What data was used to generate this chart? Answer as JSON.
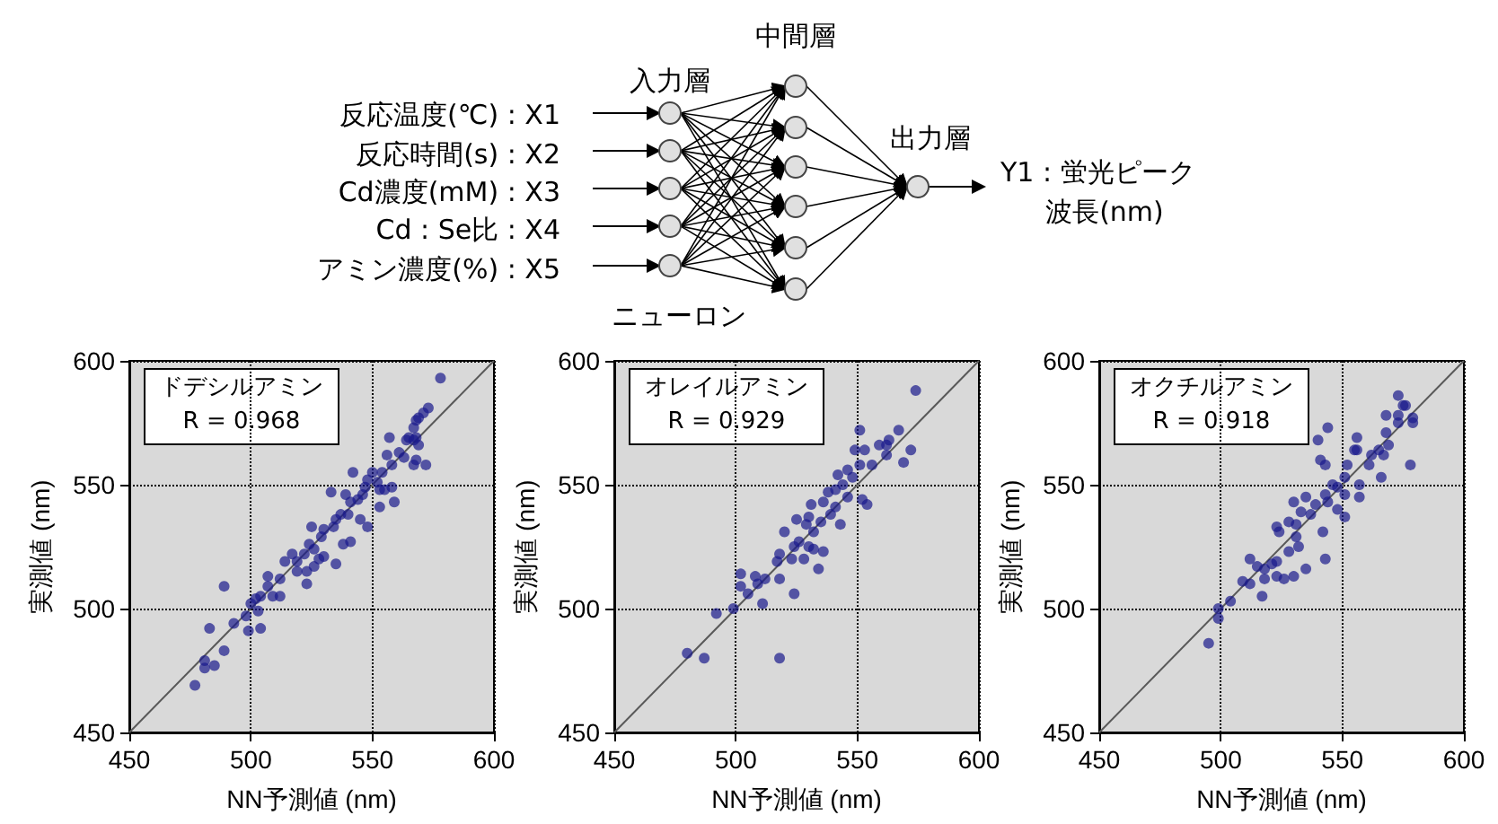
{
  "chart_data": [
    {
      "type": "other",
      "annotations": [
        "反応温度(℃) : X1",
        "反応時間(s) : X2",
        "Cd濃度(mM) : X3",
        "Cd : Se比 : X4",
        "アミン濃度(%) : X5",
        "入力層",
        "中間層",
        "出力層",
        "ニューロン",
        "Y1 : 蛍光ピーク",
        "波長(nm)"
      ]
    },
    {
      "type": "scatter",
      "xlabel": "NN予測値 (nm)",
      "ylabel": "実測値 (nm)",
      "annotations": [
        "ドデシルアミン",
        "R = 0.968"
      ],
      "xlim": [
        450,
        600
      ],
      "ylim": [
        450,
        600
      ],
      "xticks": [
        450,
        500,
        550,
        600
      ],
      "yticks": [
        450,
        500,
        550,
        600
      ],
      "grid": true,
      "series": [
        {
          "type": "scatter",
          "marker": "circle",
          "color": "#1a1a8c",
          "x": [
            578,
            573,
            571,
            569,
            568,
            567,
            565,
            567,
            568,
            564,
            569,
            557,
            561,
            563,
            568,
            572,
            567,
            556,
            558,
            554,
            550,
            542,
            548,
            547,
            552,
            553,
            555,
            558,
            559,
            553,
            546,
            544,
            541,
            539,
            533,
            545,
            548,
            540,
            537,
            535,
            534,
            530,
            541,
            529,
            525,
            524,
            526,
            528,
            522,
            517,
            519,
            535,
            523,
            523,
            512,
            507,
            509,
            512,
            504,
            502,
            500,
            498,
            503,
            489,
            493,
            483,
            499,
            504,
            489,
            481,
            485,
            481,
            477,
            507,
            514,
            519,
            526,
            530,
            538
          ],
          "values": [
            593,
            581,
            579,
            577,
            576,
            573,
            569,
            568,
            569,
            568,
            566,
            569,
            563,
            561,
            560,
            558,
            558,
            562,
            558,
            555,
            555,
            555,
            552,
            549,
            551,
            548,
            548,
            549,
            543,
            541,
            546,
            544,
            543,
            546,
            547,
            536,
            533,
            538,
            538,
            536,
            533,
            532,
            527,
            529,
            533,
            526,
            524,
            520,
            522,
            522,
            519,
            518,
            515,
            510,
            512,
            509,
            505,
            505,
            505,
            504,
            502,
            497,
            499,
            509,
            494,
            492,
            491,
            492,
            483,
            479,
            477,
            476,
            469,
            513,
            519,
            515,
            517,
            521,
            526
          ]
        },
        {
          "type": "line",
          "line_style": "solid",
          "color": "#595959",
          "x": [
            450,
            600
          ],
          "values": [
            450,
            600
          ]
        }
      ]
    },
    {
      "type": "scatter",
      "xlabel": "NN予測値 (nm)",
      "ylabel": "実測値 (nm)",
      "annotations": [
        "オレイルアミン",
        "R = 0.929"
      ],
      "xlim": [
        450,
        600
      ],
      "ylim": [
        450,
        600
      ],
      "xticks": [
        450,
        500,
        550,
        600
      ],
      "yticks": [
        450,
        500,
        550,
        600
      ],
      "grid": true,
      "series": [
        {
          "type": "scatter",
          "marker": "circle",
          "color": "#1a1a8c",
          "x": [
            574,
            551,
            567,
            563,
            559,
            562,
            572,
            549,
            553,
            562,
            569,
            556,
            551,
            546,
            542,
            548,
            544,
            541,
            538,
            546,
            552,
            554,
            531,
            536,
            541,
            539,
            530,
            525,
            535,
            543,
            529,
            532,
            520,
            526,
            524,
            530,
            532,
            536,
            518,
            523,
            528,
            534,
            518,
            502,
            508,
            512,
            509,
            502,
            505,
            524,
            511,
            499,
            492,
            480,
            487,
            518,
            517
          ],
          "values": [
            588,
            572,
            572,
            568,
            566,
            566,
            564,
            564,
            564,
            562,
            559,
            558,
            558,
            556,
            554,
            553,
            550,
            548,
            547,
            545,
            544,
            542,
            542,
            543,
            541,
            538,
            537,
            536,
            535,
            534,
            534,
            531,
            531,
            527,
            525,
            525,
            524,
            523,
            522,
            520,
            520,
            516,
            512,
            514,
            513,
            512,
            510,
            509,
            506,
            506,
            502,
            500,
            498,
            482,
            480,
            480,
            519
          ]
        },
        {
          "type": "line",
          "line_style": "solid",
          "color": "#595959",
          "x": [
            450,
            600
          ],
          "values": [
            450,
            600
          ]
        }
      ]
    },
    {
      "type": "scatter",
      "xlabel": "NN予測値 (nm)",
      "ylabel": "実測値 (nm)",
      "annotations": [
        "オクチルアミン",
        "R = 0.918"
      ],
      "xlim": [
        450,
        600
      ],
      "ylim": [
        450,
        600
      ],
      "xticks": [
        450,
        500,
        550,
        600
      ],
      "yticks": [
        450,
        500,
        550,
        600
      ],
      "grid": true,
      "series": [
        {
          "type": "scatter",
          "marker": "circle",
          "color": "#1a1a8c",
          "x": [
            573,
            575,
            576,
            573,
            568,
            579,
            579,
            573,
            544,
            540,
            556,
            555,
            556,
            568,
            569,
            565,
            562,
            567,
            578,
            541,
            543,
            552,
            561,
            566,
            557,
            551,
            548,
            551,
            557,
            546,
            543,
            544,
            539,
            535,
            530,
            533,
            537,
            548,
            551,
            531,
            528,
            523,
            524,
            542,
            531,
            532,
            528,
            523,
            521,
            512,
            515,
            518,
            518,
            535,
            530,
            526,
            509,
            512,
            517,
            504,
            499,
            499,
            495,
            543,
            523
          ],
          "values": [
            586,
            582,
            582,
            578,
            578,
            577,
            575,
            575,
            573,
            568,
            569,
            564,
            564,
            571,
            566,
            564,
            562,
            562,
            558,
            560,
            558,
            558,
            558,
            553,
            550,
            553,
            549,
            546,
            545,
            550,
            546,
            543,
            542,
            545,
            543,
            539,
            538,
            540,
            537,
            534,
            535,
            533,
            531,
            531,
            529,
            525,
            523,
            519,
            518,
            520,
            517,
            516,
            512,
            516,
            513,
            512,
            511,
            510,
            505,
            503,
            500,
            496,
            486,
            520,
            513
          ]
        },
        {
          "type": "line",
          "line_style": "solid",
          "color": "#595959",
          "x": [
            450,
            600
          ],
          "values": [
            450,
            600
          ]
        }
      ]
    }
  ]
}
